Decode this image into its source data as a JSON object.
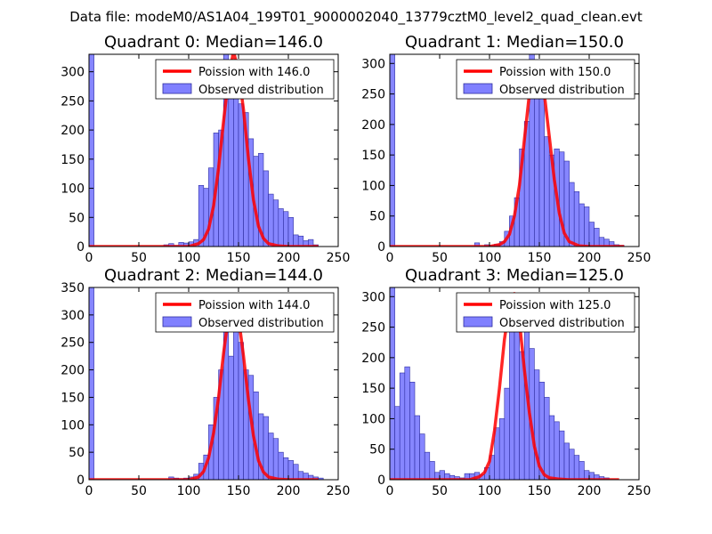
{
  "figure_title": "Data file: modeM0/AS1A04_199T01_9000002040_13779cztM0_level2_quad_clean.evt",
  "colors": {
    "bar_fill": "#8080ff",
    "bar_edge": "#2e2ea0",
    "fit_line": "#ff0000",
    "axes": "#000000",
    "background": "#ffffff"
  },
  "chart_data": [
    {
      "type": "bar",
      "title": "Quadrant 0: Median=146.0",
      "xlim": [
        0,
        250
      ],
      "ylim": [
        0,
        330
      ],
      "xticks": [
        0,
        50,
        100,
        150,
        200,
        250
      ],
      "yticks": [
        0,
        50,
        100,
        150,
        200,
        250,
        300
      ],
      "bin_width": 5,
      "legend": {
        "position": "top-right",
        "line_label": "Poission with 146.0",
        "bar_label": "Observed distribution"
      },
      "bins": [
        [
          0,
          330
        ],
        [
          75,
          3
        ],
        [
          80,
          5
        ],
        [
          85,
          2
        ],
        [
          90,
          7
        ],
        [
          95,
          6
        ],
        [
          100,
          8
        ],
        [
          105,
          12
        ],
        [
          110,
          105
        ],
        [
          115,
          100
        ],
        [
          120,
          135
        ],
        [
          125,
          195
        ],
        [
          130,
          200
        ],
        [
          135,
          330
        ],
        [
          140,
          262
        ],
        [
          145,
          305
        ],
        [
          150,
          245
        ],
        [
          155,
          230
        ],
        [
          160,
          185
        ],
        [
          165,
          155
        ],
        [
          170,
          160
        ],
        [
          175,
          130
        ],
        [
          180,
          90
        ],
        [
          185,
          80
        ],
        [
          190,
          65
        ],
        [
          195,
          60
        ],
        [
          200,
          50
        ],
        [
          205,
          20
        ],
        [
          210,
          18
        ],
        [
          215,
          10
        ],
        [
          220,
          12
        ],
        [
          225,
          3
        ]
      ],
      "fit": {
        "label": "Poission with 146.0",
        "x": [
          0,
          100,
          110,
          115,
          120,
          125,
          130,
          135,
          140,
          145,
          150,
          155,
          160,
          165,
          170,
          175,
          180,
          190,
          200,
          230
        ],
        "y": [
          0,
          0,
          5,
          12,
          30,
          70,
          135,
          215,
          290,
          335,
          300,
          235,
          150,
          80,
          35,
          14,
          5,
          1,
          0,
          0
        ]
      }
    },
    {
      "type": "bar",
      "title": "Quadrant 1: Median=150.0",
      "xlim": [
        0,
        250
      ],
      "ylim": [
        0,
        315
      ],
      "xticks": [
        0,
        50,
        100,
        150,
        200,
        250
      ],
      "yticks": [
        0,
        50,
        100,
        150,
        200,
        250,
        300
      ],
      "bin_width": 5,
      "legend": {
        "position": "top-right",
        "line_label": "Poission with 150.0",
        "bar_label": "Observed distribution"
      },
      "bins": [
        [
          0,
          315
        ],
        [
          85,
          6
        ],
        [
          95,
          3
        ],
        [
          100,
          2
        ],
        [
          105,
          4
        ],
        [
          110,
          8
        ],
        [
          115,
          25
        ],
        [
          120,
          50
        ],
        [
          125,
          80
        ],
        [
          130,
          160
        ],
        [
          135,
          205
        ],
        [
          140,
          315
        ],
        [
          145,
          270
        ],
        [
          150,
          300
        ],
        [
          155,
          180
        ],
        [
          160,
          150
        ],
        [
          165,
          160
        ],
        [
          170,
          155
        ],
        [
          175,
          140
        ],
        [
          180,
          105
        ],
        [
          185,
          90
        ],
        [
          190,
          70
        ],
        [
          195,
          65
        ],
        [
          200,
          40
        ],
        [
          205,
          30
        ],
        [
          210,
          15
        ],
        [
          215,
          12
        ],
        [
          220,
          8
        ],
        [
          225,
          3
        ],
        [
          230,
          2
        ]
      ],
      "fit": {
        "label": "Poission with 150.0",
        "x": [
          0,
          100,
          110,
          115,
          120,
          125,
          130,
          135,
          140,
          145,
          150,
          155,
          160,
          165,
          170,
          175,
          180,
          190,
          200,
          235
        ],
        "y": [
          0,
          0,
          3,
          8,
          20,
          50,
          100,
          175,
          250,
          285,
          300,
          250,
          180,
          110,
          55,
          22,
          8,
          1,
          0,
          0
        ]
      }
    },
    {
      "type": "bar",
      "title": "Quadrant 2: Median=144.0",
      "xlim": [
        0,
        250
      ],
      "ylim": [
        0,
        350
      ],
      "xticks": [
        0,
        50,
        100,
        150,
        200,
        250
      ],
      "yticks": [
        0,
        50,
        100,
        150,
        200,
        250,
        300,
        350
      ],
      "bin_width": 5,
      "legend": {
        "position": "top-right",
        "line_label": "Poission with 144.0",
        "bar_label": "Observed distribution"
      },
      "bins": [
        [
          0,
          350
        ],
        [
          80,
          5
        ],
        [
          85,
          3
        ],
        [
          90,
          2
        ],
        [
          95,
          3
        ],
        [
          100,
          5
        ],
        [
          105,
          10
        ],
        [
          110,
          30
        ],
        [
          115,
          45
        ],
        [
          120,
          100
        ],
        [
          125,
          150
        ],
        [
          130,
          200
        ],
        [
          135,
          285
        ],
        [
          140,
          225
        ],
        [
          145,
          320
        ],
        [
          150,
          250
        ],
        [
          155,
          200
        ],
        [
          160,
          190
        ],
        [
          165,
          160
        ],
        [
          170,
          120
        ],
        [
          175,
          115
        ],
        [
          180,
          85
        ],
        [
          185,
          75
        ],
        [
          190,
          50
        ],
        [
          195,
          40
        ],
        [
          200,
          35
        ],
        [
          205,
          28
        ],
        [
          210,
          15
        ],
        [
          215,
          12
        ],
        [
          220,
          8
        ],
        [
          225,
          5
        ],
        [
          230,
          3
        ]
      ],
      "fit": {
        "label": "Poission with 144.0",
        "x": [
          0,
          100,
          110,
          115,
          120,
          125,
          130,
          135,
          140,
          145,
          150,
          155,
          160,
          165,
          170,
          175,
          180,
          190,
          200,
          230
        ],
        "y": [
          0,
          0,
          5,
          15,
          40,
          85,
          150,
          230,
          300,
          330,
          295,
          225,
          145,
          80,
          35,
          14,
          5,
          1,
          0,
          0
        ]
      }
    },
    {
      "type": "bar",
      "title": "Quadrant 3: Median=125.0",
      "xlim": [
        0,
        250
      ],
      "ylim": [
        0,
        315
      ],
      "xticks": [
        0,
        50,
        100,
        150,
        200,
        250
      ],
      "yticks": [
        0,
        50,
        100,
        150,
        200,
        250,
        300
      ],
      "bin_width": 5,
      "legend": {
        "position": "top-right",
        "line_label": "Poission with 125.0",
        "bar_label": "Observed distribution"
      },
      "bins": [
        [
          0,
          315
        ],
        [
          5,
          120
        ],
        [
          10,
          175
        ],
        [
          15,
          185
        ],
        [
          20,
          160
        ],
        [
          25,
          105
        ],
        [
          30,
          75
        ],
        [
          35,
          45
        ],
        [
          40,
          30
        ],
        [
          45,
          12
        ],
        [
          50,
          15
        ],
        [
          55,
          10
        ],
        [
          60,
          7
        ],
        [
          65,
          5
        ],
        [
          70,
          3
        ],
        [
          75,
          10
        ],
        [
          80,
          10
        ],
        [
          85,
          12
        ],
        [
          90,
          8
        ],
        [
          95,
          20
        ],
        [
          100,
          40
        ],
        [
          105,
          85
        ],
        [
          110,
          100
        ],
        [
          115,
          150
        ],
        [
          120,
          250
        ],
        [
          125,
          270
        ],
        [
          130,
          210
        ],
        [
          135,
          300
        ],
        [
          140,
          215
        ],
        [
          145,
          180
        ],
        [
          150,
          160
        ],
        [
          155,
          135
        ],
        [
          160,
          105
        ],
        [
          165,
          95
        ],
        [
          170,
          80
        ],
        [
          175,
          60
        ],
        [
          180,
          50
        ],
        [
          185,
          40
        ],
        [
          190,
          30
        ],
        [
          195,
          15
        ],
        [
          200,
          12
        ],
        [
          205,
          8
        ],
        [
          210,
          5
        ],
        [
          215,
          3
        ]
      ],
      "fit": {
        "label": "Poission with 125.0",
        "x": [
          0,
          80,
          90,
          95,
          100,
          105,
          110,
          115,
          120,
          125,
          130,
          135,
          140,
          145,
          150,
          155,
          160,
          170,
          180,
          230
        ],
        "y": [
          0,
          0,
          5,
          12,
          30,
          80,
          150,
          230,
          285,
          305,
          260,
          180,
          110,
          55,
          22,
          8,
          3,
          1,
          0,
          0
        ]
      }
    }
  ]
}
